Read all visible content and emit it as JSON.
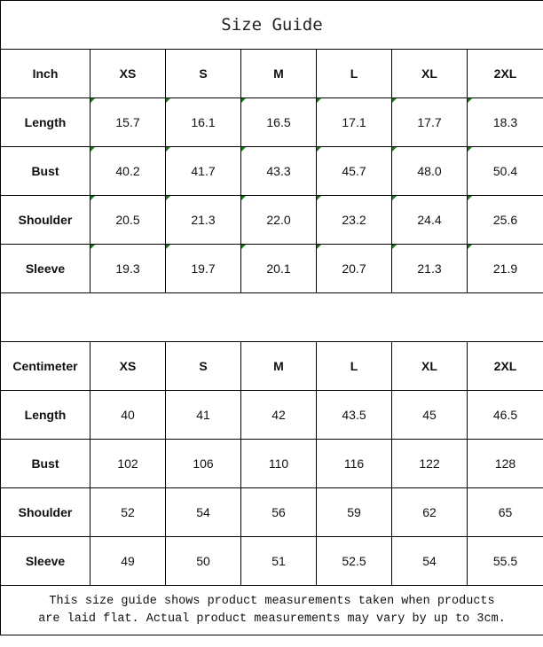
{
  "title": "Size Guide",
  "sizes": [
    "XS",
    "S",
    "M",
    "L",
    "XL",
    "2XL"
  ],
  "inch": {
    "label": "Inch",
    "rows": [
      {
        "name": "Length",
        "values": [
          "15.7",
          "16.1",
          "16.5",
          "17.1",
          "17.7",
          "18.3"
        ]
      },
      {
        "name": "Bust",
        "values": [
          "40.2",
          "41.7",
          "43.3",
          "45.7",
          "48.0",
          "50.4"
        ]
      },
      {
        "name": "Shoulder",
        "values": [
          "20.5",
          "21.3",
          "22.0",
          "23.2",
          "24.4",
          "25.6"
        ]
      },
      {
        "name": "Sleeve",
        "values": [
          "19.3",
          "19.7",
          "20.1",
          "20.7",
          "21.3",
          "21.9"
        ]
      }
    ]
  },
  "cm": {
    "label": "Centimeter",
    "rows": [
      {
        "name": "Length",
        "values": [
          "40",
          "41",
          "42",
          "43.5",
          "45",
          "46.5"
        ]
      },
      {
        "name": "Bust",
        "values": [
          "102",
          "106",
          "110",
          "116",
          "122",
          "128"
        ]
      },
      {
        "name": "Shoulder",
        "values": [
          "52",
          "54",
          "56",
          "59",
          "62",
          "65"
        ]
      },
      {
        "name": "Sleeve",
        "values": [
          "49",
          "50",
          "51",
          "52.5",
          "54",
          "55.5"
        ]
      }
    ]
  },
  "note_line1": "This size guide shows product measurements taken when products",
  "note_line2": "are laid flat. Actual product measurements may vary by up to 3cm.",
  "colors": {
    "cell_marker": "#1a7a1a"
  }
}
